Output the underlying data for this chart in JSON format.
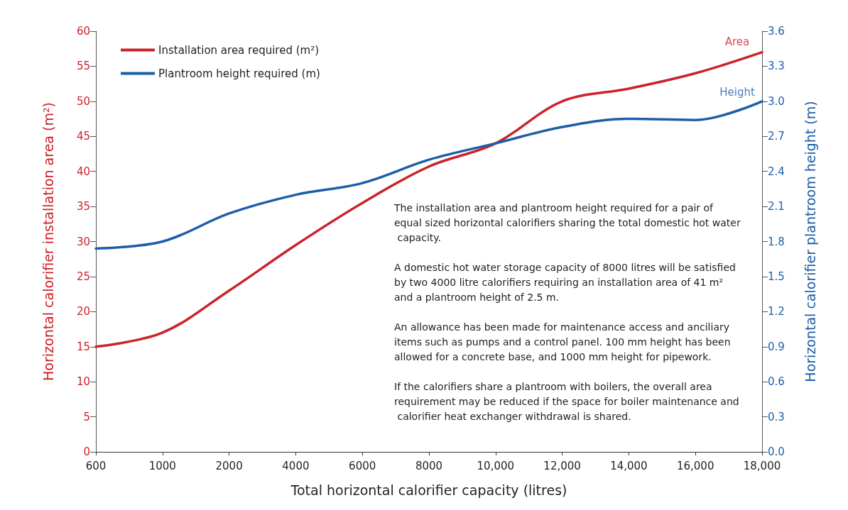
{
  "chart_data": {
    "type": "line",
    "xlabel": "Total horizontal calorifier capacity (litres)",
    "ylabel": "Horizontal calorifier installation area (m²)",
    "y2label": "Horizontal calorifier plantroom height (m)",
    "categories": [
      "600",
      "1000",
      "2000",
      "4000",
      "6000",
      "8000",
      "10,000",
      "12,000",
      "14,000",
      "16,000",
      "18,000"
    ],
    "series": [
      {
        "name": "Installation area required (m²)",
        "color": "#cc2229",
        "values": [
          15,
          17,
          23,
          29.5,
          35.5,
          40.7,
          44,
          50,
          51.8,
          54,
          57
        ]
      },
      {
        "name": "Plantroom height required (m)",
        "color": "#1d5ea8",
        "axis": "y2",
        "values": [
          1.74,
          1.8,
          2.04,
          2.2,
          2.3,
          2.5,
          2.64,
          2.78,
          2.85,
          2.84,
          3.0
        ]
      }
    ],
    "ylim": [
      0,
      60
    ],
    "yticks": [
      0,
      5,
      10,
      15,
      20,
      25,
      30,
      35,
      40,
      45,
      50,
      55,
      60
    ],
    "y2lim": [
      0,
      3.6
    ],
    "y2ticks": [
      {
        "value": 0,
        "label": "0.0"
      },
      0.3,
      0.6,
      0.9,
      1.2,
      1.5,
      1.8,
      2.1,
      2.4,
      2.7,
      {
        "value": 3,
        "label": "3.0"
      },
      3.3,
      3.6
    ],
    "grid": false,
    "legend": "top left",
    "marker": "none",
    "line_style": "solid",
    "annotations": [
      {
        "text": "Area",
        "x": "18,000",
        "y": 57
      },
      {
        "text": "Height",
        "x": "18,000",
        "y": 50
      },
      "The installation area and plantroom height required for a pair of equal sized horizontal calorifiers sharing the total domestic hot water capacity.",
      "A domestic hot water storage capacity of 8000 litres will be satisfied by two 4000 litre calorifiers requiring an installation area of 41 m² and a plantroom height of 2.5 m.",
      "An allowance has been made for maintenance access and anciliary items such as pumps and a control panel. 100 mm height has been allowed for a concrete base, and 1000 mm height for pipework.",
      "If the calorifiers share a plantroom with boilers, the overall area requirement may be reduced if the space for boiler maintenance and calorifier heat exchanger withdrawal is shared."
    ]
  }
}
